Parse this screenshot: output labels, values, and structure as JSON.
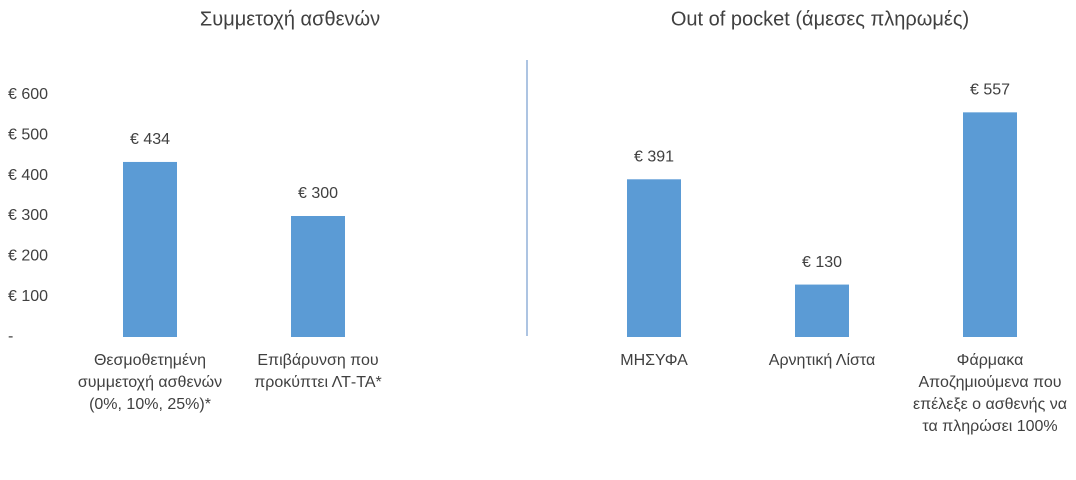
{
  "chart_data": {
    "type": "bar",
    "group_titles": [
      "Συμμετοχή ασθενών",
      "Out of pocket (άμεσες πληρωμές)"
    ],
    "categories": [
      "Θεσμοθετημένη συμμετοχή ασθενών (0%, 10%, 25%)*",
      "Επιβάρυνση που προκύπτει ΛΤ-ΤΑ*",
      null,
      "ΜΗΣΥΦΑ",
      "Αρνητική Λίστα",
      "Φάρμακα Αποζημιούμενα που επέλεξε ο ασθενής να τα πληρώσει 100%"
    ],
    "values": [
      434,
      300,
      null,
      391,
      130,
      557
    ],
    "value_labels": [
      "€ 434",
      "€ 300",
      null,
      "€ 391",
      "€ 130",
      "€ 557"
    ],
    "color": "#5b9bd5",
    "ylim": [
      0,
      600
    ],
    "yticks": [
      {
        "value": 0,
        "label": "-"
      },
      {
        "value": 100,
        "label": "€ 100"
      },
      {
        "value": 200,
        "label": "€ 200"
      },
      {
        "value": 300,
        "label": "€ 300"
      },
      {
        "value": 400,
        "label": "€ 400"
      },
      {
        "value": 500,
        "label": "€ 500"
      },
      {
        "value": 600,
        "label": "€ 600"
      }
    ],
    "grid": false
  }
}
